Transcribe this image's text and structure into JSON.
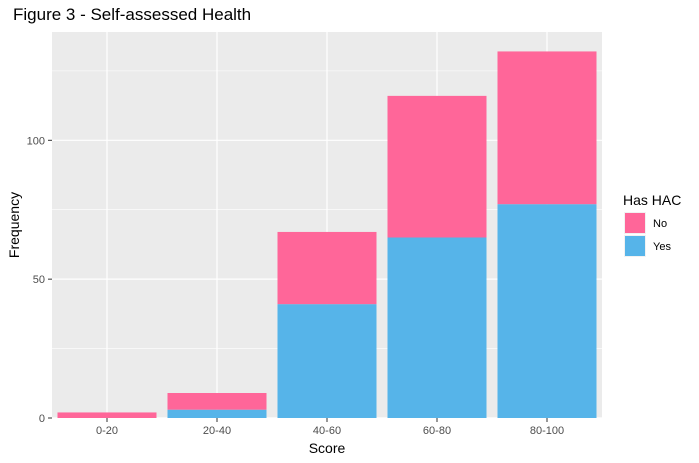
{
  "chart_data": {
    "type": "bar",
    "stacked": true,
    "title": "Figure 3 - Self-assessed Health",
    "xlabel": "Score",
    "ylabel": "Frequency",
    "categories": [
      "0-20",
      "20-40",
      "40-60",
      "60-80",
      "80-100"
    ],
    "series": [
      {
        "name": "Yes",
        "color": "#56B4E9",
        "values": [
          0,
          3,
          41,
          65,
          77
        ]
      },
      {
        "name": "No",
        "color": "#FF6699",
        "values": [
          2,
          6,
          26,
          51,
          55
        ]
      }
    ],
    "ylim": [
      0,
      139
    ],
    "yticks": [
      0,
      50,
      100
    ],
    "grid": true,
    "legend": {
      "title": "Has HAC",
      "placement": "right",
      "order": [
        "No",
        "Yes"
      ]
    }
  }
}
